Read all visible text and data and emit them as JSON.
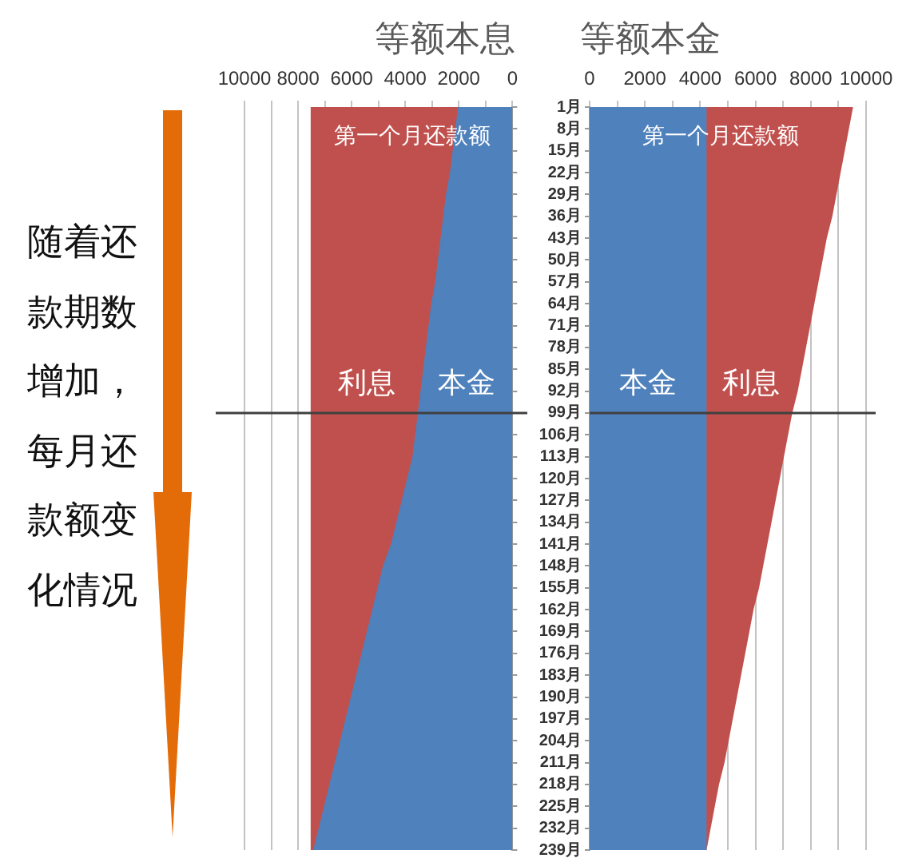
{
  "chart_data": [
    {
      "type": "area",
      "title": "等额本息",
      "orientation": "horizontal",
      "stacked": true,
      "categories": [
        "1月",
        "8月",
        "15月",
        "22月",
        "29月",
        "36月",
        "43月",
        "50月",
        "57月",
        "64月",
        "71月",
        "78月",
        "85月",
        "92月",
        "99月",
        "106月",
        "113月",
        "120月",
        "127月",
        "134月",
        "141月",
        "148月",
        "155月",
        "162月",
        "169月",
        "176月",
        "183月",
        "190月",
        "197月",
        "204月",
        "211月",
        "218月",
        "225月",
        "232月",
        "239月"
      ],
      "series": [
        {
          "name": "本金",
          "color": "#4f81bd",
          "values": [
            2000,
            2100,
            2200,
            2300,
            2450,
            2550,
            2650,
            2750,
            2850,
            3000,
            3100,
            3200,
            3300,
            3400,
            3500,
            3600,
            3700,
            3900,
            4100,
            4300,
            4500,
            4800,
            5000,
            5200,
            5400,
            5600,
            5800,
            6000,
            6200,
            6400,
            6600,
            6800,
            7000,
            7200,
            7400
          ]
        },
        {
          "name": "利息",
          "color": "#c0504d",
          "values": [
            5500,
            5400,
            5300,
            5200,
            5050,
            4950,
            4850,
            4750,
            4650,
            4500,
            4400,
            4300,
            4200,
            4100,
            4000,
            3900,
            3800,
            3600,
            3400,
            3200,
            3000,
            2700,
            2500,
            2300,
            2100,
            1900,
            1700,
            1500,
            1300,
            1100,
            900,
            700,
            500,
            300,
            100
          ]
        }
      ],
      "xlim": [
        10000,
        0
      ],
      "xticks": [
        10000,
        {
          "value": 9000,
          "label": null
        },
        8000,
        {
          "value": 7000,
          "label": null
        },
        6000,
        {
          "value": 5000,
          "label": null
        },
        4000,
        {
          "value": 3000,
          "label": null
        },
        2000,
        {
          "value": 1000,
          "label": null
        },
        0
      ],
      "grid": "x",
      "tick_labels": "x",
      "ref_lines": [
        {
          "axis": "y",
          "value": "99月",
          "color": "#404040"
        }
      ],
      "annotations": [
        "第一个月还款额",
        "随着还款期数增加，每月还款额变化情况"
      ]
    },
    {
      "type": "area",
      "title": "等额本金",
      "orientation": "horizontal",
      "stacked": true,
      "categories": [
        "1月",
        "8月",
        "15月",
        "22月",
        "29月",
        "36月",
        "43月",
        "50月",
        "57月",
        "64月",
        "71月",
        "78月",
        "85月",
        "92月",
        "99月",
        "106月",
        "113月",
        "120月",
        "127月",
        "134月",
        "141月",
        "148月",
        "155月",
        "162月",
        "169月",
        "176月",
        "183月",
        "190月",
        "197月",
        "204月",
        "211月",
        "218月",
        "225月",
        "232月",
        "239月"
      ],
      "series": [
        {
          "name": "本金",
          "color": "#4f81bd",
          "values": [
            4200,
            4200,
            4200,
            4200,
            4200,
            4200,
            4200,
            4200,
            4200,
            4200,
            4200,
            4200,
            4200,
            4200,
            4200,
            4200,
            4200,
            4200,
            4200,
            4200,
            4200,
            4200,
            4200,
            4200,
            4200,
            4200,
            4200,
            4200,
            4200,
            4200,
            4200,
            4200,
            4200,
            4200,
            4200
          ]
        },
        {
          "name": "利息",
          "color": "#c0504d",
          "values": [
            5300,
            5150,
            5000,
            4850,
            4700,
            4550,
            4350,
            4200,
            4050,
            3900,
            3750,
            3600,
            3450,
            3300,
            3100,
            2950,
            2800,
            2650,
            2500,
            2350,
            2200,
            2050,
            1900,
            1700,
            1550,
            1400,
            1250,
            1100,
            950,
            800,
            650,
            450,
            300,
            150,
            0
          ]
        }
      ],
      "xlim": [
        0,
        10000
      ],
      "xticks": [
        0,
        {
          "value": 1000,
          "label": null
        },
        2000,
        {
          "value": 3000,
          "label": null
        },
        4000,
        {
          "value": 5000,
          "label": null
        },
        6000,
        {
          "value": 7000,
          "label": null
        },
        8000,
        {
          "value": 9000,
          "label": null
        },
        10000
      ],
      "grid": "x",
      "ref_lines": [
        {
          "axis": "y",
          "value": "99月",
          "color": "#404040"
        }
      ],
      "annotations": [
        "第一个月还款额"
      ]
    }
  ]
}
